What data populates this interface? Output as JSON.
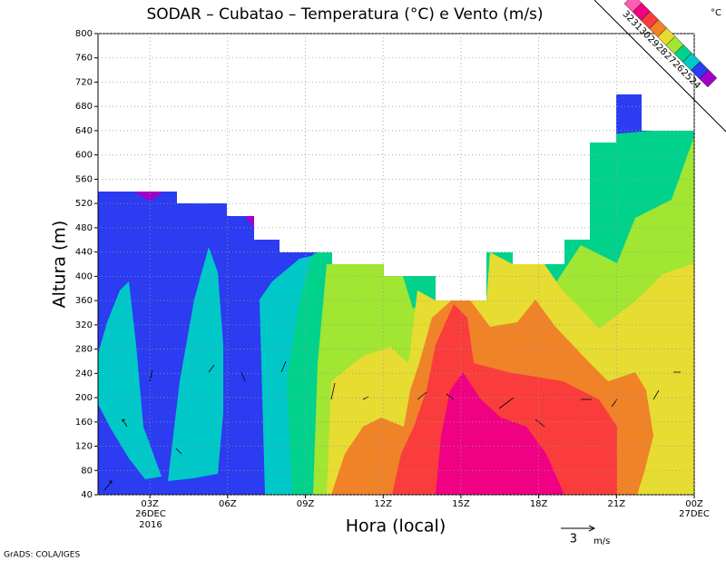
{
  "chart_data": {
    "type": "contour",
    "title": "SODAR – Cubatao – Temperatura (°C) e Vento (m/s)",
    "x_label": "Hora (local)",
    "y_label": "Altura (m)",
    "xlim": [
      1,
      24
    ],
    "xticks": [
      {
        "value": 3,
        "label": "03Z"
      },
      {
        "value": 6,
        "label": "06Z"
      },
      {
        "value": 9,
        "label": "09Z"
      },
      {
        "value": 12,
        "label": "12Z"
      },
      {
        "value": 15,
        "label": "15Z"
      },
      {
        "value": 18,
        "label": "18Z"
      },
      {
        "value": 21,
        "label": "21Z"
      },
      {
        "value": 24,
        "label": "00Z"
      }
    ],
    "date_labels": [
      "26DEC",
      "2016",
      "27DEC"
    ],
    "ylim": [
      40,
      800
    ],
    "yticks": [
      40,
      80,
      120,
      160,
      200,
      240,
      280,
      320,
      360,
      400,
      440,
      480,
      520,
      560,
      600,
      640,
      680,
      720,
      760,
      800
    ],
    "grid": true,
    "colorbar": {
      "levels": [
        24,
        25,
        26,
        27,
        28,
        29,
        30,
        31,
        32
      ],
      "colors": [
        "#a000c8",
        "#2c3cf0",
        "#00c8c8",
        "#00d28c",
        "#a0e632",
        "#e6dc32",
        "#f08228",
        "#fa3c3c",
        "#f00082",
        "#ff5ab4"
      ],
      "unit": "°C"
    },
    "vector_scale": {
      "value": 3,
      "unit": "m/s"
    },
    "credit": "GrADS: COLA/IGES"
  }
}
